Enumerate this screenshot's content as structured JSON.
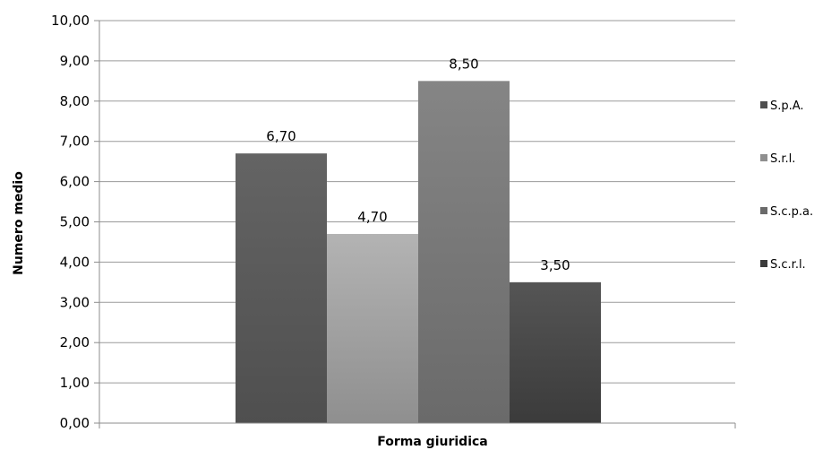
{
  "chart_data": {
    "type": "bar",
    "xlabel": "Forma giuridica",
    "ylabel": "Numero medio",
    "ylim": [
      0,
      10
    ],
    "ytick_step": 1,
    "yticks": [
      "0,00",
      "1,00",
      "2,00",
      "3,00",
      "4,00",
      "5,00",
      "6,00",
      "7,00",
      "8,00",
      "9,00",
      "10,00"
    ],
    "grid": true,
    "legend_position": "right",
    "series": [
      {
        "name": "S.p.A.",
        "value": 6.7,
        "label": "6,70",
        "color_top": "#646464",
        "color_bottom": "#4f4f4f"
      },
      {
        "name": "S.r.l.",
        "value": 4.7,
        "label": "4,70",
        "color_top": "#b3b3b3",
        "color_bottom": "#8f8f8f"
      },
      {
        "name": "S.c.p.a.",
        "value": 8.5,
        "label": "8,50",
        "color_top": "#858585",
        "color_bottom": "#6a6a6a"
      },
      {
        "name": "S.c.r.l.",
        "value": 3.5,
        "label": "3,50",
        "color_top": "#555555",
        "color_bottom": "#3b3b3b"
      }
    ]
  },
  "colors": {
    "gridline": "#9a9a9a",
    "axis": "#8c8c8c"
  }
}
